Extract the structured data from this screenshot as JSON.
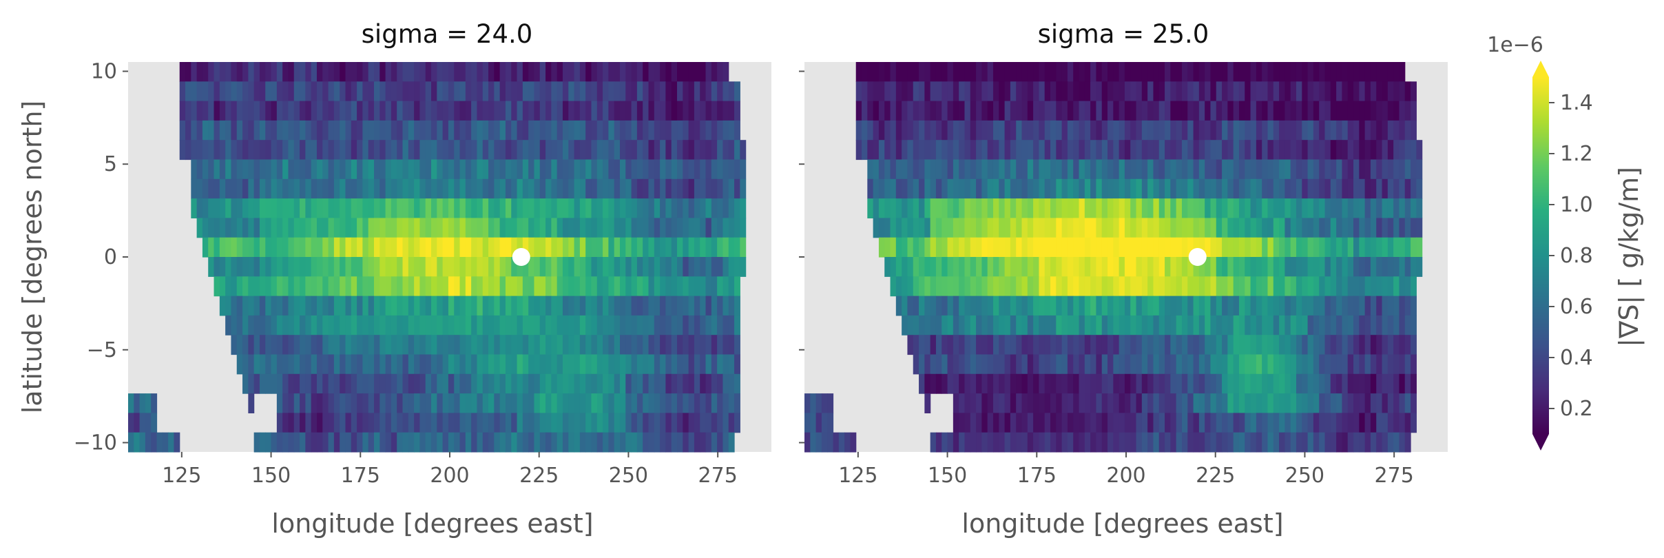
{
  "chart_data": {
    "type": "heatmap",
    "colormap": "viridis",
    "missing_color": "#e5e5e5",
    "panels": [
      {
        "title": "sigma = 24.0",
        "xlabel": "longitude [degrees east]",
        "ylabel": "latitude [degrees north]",
        "marker": {
          "lon": 220,
          "lat": 0,
          "color": "#ffffff"
        },
        "features": [
          {
            "lat": [
              1.5,
              3
            ],
            "lon": [
              147,
              205
            ],
            "value": 1.1
          },
          {
            "lat": [
              0.5,
              2.5
            ],
            "lon": [
              178,
              210
            ],
            "value": 1.4
          },
          {
            "lat": [
              -1.5,
              0.5
            ],
            "lon": [
              176,
              215
            ],
            "value": 1.42
          },
          {
            "lat": [
              -2,
              0
            ],
            "lon": [
              150,
              178
            ],
            "value": 1.05
          },
          {
            "lat": [
              -5,
              -3
            ],
            "lon": [
              165,
              245
            ],
            "value": 0.85
          },
          {
            "lat": [
              -9,
              -5
            ],
            "lon": [
              225,
              250
            ],
            "value": 0.95
          }
        ]
      },
      {
        "title": "sigma = 25.0",
        "xlabel": "longitude [degrees east]",
        "ylabel": "",
        "marker": {
          "lon": 220,
          "lat": 0,
          "color": "#ffffff"
        },
        "features": [
          {
            "lat": [
              0.5,
              3.5
            ],
            "lon": [
              145,
              200
            ],
            "value": 1.4
          },
          {
            "lat": [
              -2,
              2
            ],
            "lon": [
              175,
              225
            ],
            "value": 1.48
          },
          {
            "lat": [
              -2,
              0
            ],
            "lon": [
              140,
              175
            ],
            "value": 1.15
          },
          {
            "lat": [
              -8,
              -4
            ],
            "lon": [
              228,
              248
            ],
            "value": 1.05
          },
          {
            "lat": [
              -10,
              -6
            ],
            "lon": [
              150,
              200
            ],
            "value": 0.25
          }
        ]
      }
    ],
    "x_range": [
      110,
      290
    ],
    "y_range": [
      -10.5,
      10.5
    ],
    "x_ticks": [
      125,
      150,
      175,
      200,
      225,
      250,
      275
    ],
    "y_ticks": [
      10,
      5,
      0,
      -5,
      -10
    ],
    "x_tick_labels": [
      "125",
      "150",
      "175",
      "200",
      "225",
      "250",
      "275"
    ],
    "y_tick_labels": [
      "10",
      "5",
      "0",
      "−5",
      "−10"
    ],
    "colorbar": {
      "label": "|∇S| [ g/kg/m]",
      "exponent": "1e−6",
      "vmin": 0.1,
      "vmax": 1.5,
      "extend": "both",
      "ticks": [
        0.2,
        0.4,
        0.6,
        0.8,
        1.0,
        1.2,
        1.4
      ],
      "tick_labels": [
        "0.2",
        "0.4",
        "0.6",
        "0.8",
        "1.0",
        "1.2",
        "1.4"
      ]
    }
  }
}
